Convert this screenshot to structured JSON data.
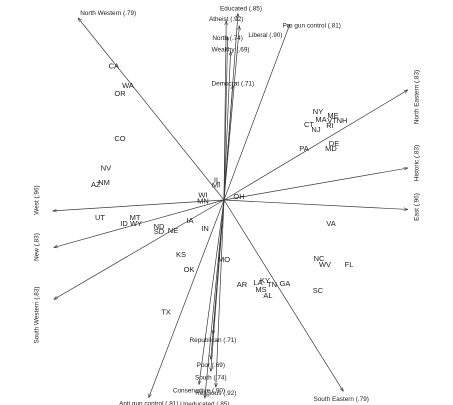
{
  "chart_data": {
    "type": "scatter",
    "subtype": "biplot",
    "title": "",
    "xlabel": "",
    "ylabel": "",
    "xlim": [
      -1,
      1
    ],
    "ylim": [
      -1,
      1
    ],
    "grid": false,
    "legend": "none",
    "colors": {
      "marks": "#3a3a3a",
      "text": "#222222",
      "background": "#ffffff"
    },
    "vectors": [
      {
        "label": "Educated (.85)",
        "x": 0.07,
        "y": 0.927
      },
      {
        "label": "Atheist (.92)",
        "x": 0.011,
        "y": 0.89
      },
      {
        "label": "Liberal (.90)",
        "x": 0.077,
        "y": 0.865
      },
      {
        "label": "Pro gun control (.81)",
        "x": 0.329,
        "y": 0.874
      },
      {
        "label": "North (.74)",
        "x": 0.018,
        "y": 0.812
      },
      {
        "label": "Wealthy (.69)",
        "x": 0.033,
        "y": 0.738
      },
      {
        "label": "Democrat (.71)",
        "x": 0.044,
        "y": 0.57
      },
      {
        "label": "North Western (.79)",
        "x": -0.729,
        "y": 0.905
      },
      {
        "label": "North Eastern (.83)",
        "x": 0.918,
        "y": 0.547
      },
      {
        "label": "Historic (.83)",
        "x": 0.918,
        "y": 0.159
      },
      {
        "label": "East (.96)",
        "x": 0.918,
        "y": -0.047
      },
      {
        "label": "West (.96)",
        "x": -0.855,
        "y": -0.054
      },
      {
        "label": "New (.83)",
        "x": -0.85,
        "y": -0.236
      },
      {
        "label": "South Western (.83)",
        "x": -0.85,
        "y": -0.494
      },
      {
        "label": "South Eastern (.79)",
        "x": 0.596,
        "y": -0.951
      },
      {
        "label": "Republican (.71)",
        "x": -0.055,
        "y": -0.667
      },
      {
        "label": "Poor (.69)",
        "x": -0.066,
        "y": -0.791
      },
      {
        "label": "South (.74)",
        "x": -0.066,
        "y": -0.852
      },
      {
        "label": "Conservative (.90)",
        "x": -0.125,
        "y": -0.917
      },
      {
        "label": "Religious (.92)",
        "x": -0.041,
        "y": -0.93
      },
      {
        "label": "Anti gun control (.81)",
        "x": -0.376,
        "y": -0.982
      },
      {
        "label": "Uneducated (.85)",
        "x": -0.096,
        "y": -0.985
      }
    ],
    "points": [
      {
        "label": "CA",
        "x": -0.551,
        "y": 0.663
      },
      {
        "label": "WA",
        "x": -0.48,
        "y": 0.567
      },
      {
        "label": "OR",
        "x": -0.52,
        "y": 0.527
      },
      {
        "label": "CO",
        "x": -0.52,
        "y": 0.304
      },
      {
        "label": "NV",
        "x": -0.59,
        "y": 0.156
      },
      {
        "label": "NM",
        "x": -0.6,
        "y": 0.085
      },
      {
        "label": "AZ",
        "x": -0.641,
        "y": 0.075
      },
      {
        "label": "UT",
        "x": -0.62,
        "y": -0.089
      },
      {
        "label": "MT",
        "x": -0.445,
        "y": -0.089
      },
      {
        "label": "ID",
        "x": -0.5,
        "y": -0.119
      },
      {
        "label": "WY",
        "x": -0.44,
        "y": -0.119
      },
      {
        "label": "ND",
        "x": -0.325,
        "y": -0.134
      },
      {
        "label": "SD",
        "x": -0.325,
        "y": -0.159
      },
      {
        "label": "NE",
        "x": -0.255,
        "y": -0.154
      },
      {
        "label": "IA",
        "x": -0.17,
        "y": -0.104
      },
      {
        "label": "IN",
        "x": -0.095,
        "y": -0.144
      },
      {
        "label": "KS",
        "x": -0.215,
        "y": -0.273
      },
      {
        "label": "OK",
        "x": -0.175,
        "y": -0.348
      },
      {
        "label": "TX",
        "x": -0.29,
        "y": -0.561
      },
      {
        "label": "MO",
        "x": 0.0,
        "y": -0.298
      },
      {
        "label": "IL",
        "x": -0.035,
        "y": 0.097
      },
      {
        "label": "MI",
        "x": -0.04,
        "y": 0.072
      },
      {
        "label": "WI",
        "x": -0.105,
        "y": 0.023
      },
      {
        "label": "MN",
        "x": -0.105,
        "y": -0.007
      },
      {
        "label": "OH",
        "x": 0.075,
        "y": 0.015
      },
      {
        "label": "NY",
        "x": 0.47,
        "y": 0.438
      },
      {
        "label": "ME",
        "x": 0.545,
        "y": 0.418
      },
      {
        "label": "MA",
        "x": 0.485,
        "y": 0.398
      },
      {
        "label": "VT",
        "x": 0.54,
        "y": 0.393
      },
      {
        "label": "NH",
        "x": 0.59,
        "y": 0.393
      },
      {
        "label": "CT",
        "x": 0.425,
        "y": 0.372
      },
      {
        "label": "RI",
        "x": 0.53,
        "y": 0.368
      },
      {
        "label": "NJ",
        "x": 0.46,
        "y": 0.348
      },
      {
        "label": "DE",
        "x": 0.55,
        "y": 0.279
      },
      {
        "label": "PA",
        "x": 0.4,
        "y": 0.254
      },
      {
        "label": "MD",
        "x": 0.535,
        "y": 0.254
      },
      {
        "label": "VA",
        "x": 0.535,
        "y": -0.119
      },
      {
        "label": "NC",
        "x": 0.475,
        "y": -0.293
      },
      {
        "label": "WV",
        "x": 0.505,
        "y": -0.323
      },
      {
        "label": "FL",
        "x": 0.625,
        "y": -0.323
      },
      {
        "label": "SC",
        "x": 0.47,
        "y": -0.452
      },
      {
        "label": "GA",
        "x": 0.305,
        "y": -0.417
      },
      {
        "label": "KY",
        "x": 0.205,
        "y": -0.402
      },
      {
        "label": "TN",
        "x": 0.24,
        "y": -0.422
      },
      {
        "label": "LA",
        "x": 0.17,
        "y": -0.412
      },
      {
        "label": "AR",
        "x": 0.09,
        "y": -0.422
      },
      {
        "label": "MS",
        "x": 0.185,
        "y": -0.447
      },
      {
        "label": "AL",
        "x": 0.22,
        "y": -0.477
      }
    ]
  }
}
